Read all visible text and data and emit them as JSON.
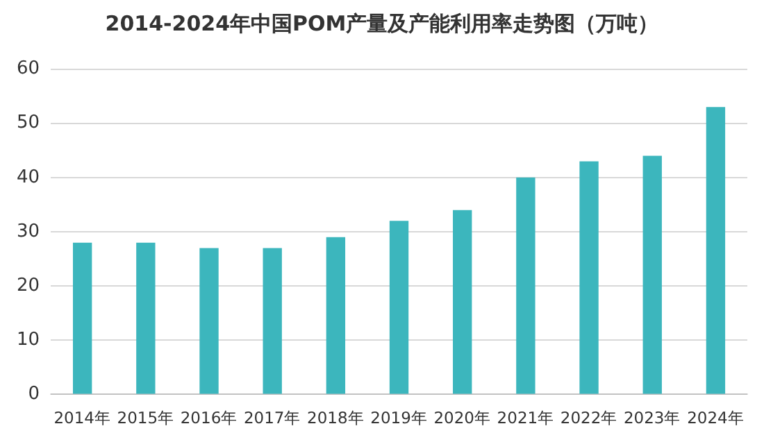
{
  "chart_data": {
    "type": "bar",
    "title": "2014-2024年中国POM产量及产能利用率走势图（万吨）",
    "categories": [
      "2014年",
      "2015年",
      "2016年",
      "2017年",
      "2018年",
      "2019年",
      "2020年",
      "2021年",
      "2022年",
      "2023年",
      "2024年"
    ],
    "values": [
      28,
      28,
      27,
      27,
      29,
      32,
      34,
      40,
      43,
      44,
      53
    ],
    "color": "#3cb6bd",
    "ylim": [
      0,
      60
    ],
    "yticks": [
      0,
      10,
      20,
      30,
      40,
      50,
      60
    ],
    "grid": "y"
  }
}
